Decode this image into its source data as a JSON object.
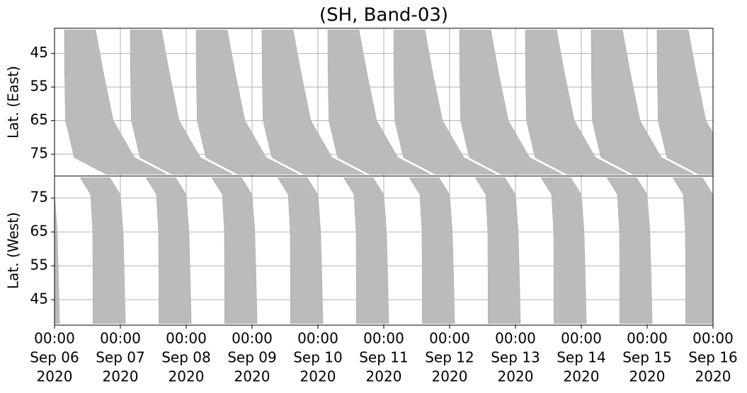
{
  "chart_data": [
    {
      "type": "band",
      "title": "(SH, Band-03)",
      "ylabel": "Lat. (East)",
      "ylim": [
        81.5,
        37.5
      ],
      "yticks": [
        45,
        55,
        65,
        75
      ],
      "grid": true,
      "color": "#bbbbbb",
      "lats": [
        38,
        50,
        65,
        76,
        81
      ],
      "bands": [
        {
          "start": [
            "2020-09-06 03:36",
            "2020-09-06 03:40",
            "2020-09-06 04:00",
            "2020-09-06 07:10",
            "2020-09-06 18:50"
          ],
          "end": [
            "2020-09-06 15:00",
            "2020-09-06 17:40",
            "2020-09-06 21:25",
            "2020-09-07 05:10",
            "2020-09-07 17:00"
          ]
        },
        {
          "start": [
            "2020-09-07 03:36",
            "2020-09-07 03:40",
            "2020-09-07 04:00",
            "2020-09-07 07:10",
            "2020-09-07 18:50"
          ],
          "end": [
            "2020-09-07 15:00",
            "2020-09-07 17:40",
            "2020-09-07 21:25",
            "2020-09-08 05:10",
            "2020-09-08 17:00"
          ]
        },
        {
          "start": [
            "2020-09-08 03:36",
            "2020-09-08 03:40",
            "2020-09-08 04:00",
            "2020-09-08 07:10",
            "2020-09-08 18:50"
          ],
          "end": [
            "2020-09-08 15:00",
            "2020-09-08 17:40",
            "2020-09-08 21:25",
            "2020-09-09 05:10",
            "2020-09-09 17:00"
          ]
        },
        {
          "start": [
            "2020-09-09 03:36",
            "2020-09-09 03:40",
            "2020-09-09 04:00",
            "2020-09-09 07:10",
            "2020-09-09 18:50"
          ],
          "end": [
            "2020-09-09 15:00",
            "2020-09-09 17:40",
            "2020-09-09 21:25",
            "2020-09-10 05:10",
            "2020-09-10 17:00"
          ]
        },
        {
          "start": [
            "2020-09-10 03:36",
            "2020-09-10 03:40",
            "2020-09-10 04:00",
            "2020-09-10 07:10",
            "2020-09-10 18:50"
          ],
          "end": [
            "2020-09-10 15:00",
            "2020-09-10 17:40",
            "2020-09-10 21:25",
            "2020-09-11 05:10",
            "2020-09-11 17:00"
          ]
        },
        {
          "start": [
            "2020-09-11 03:36",
            "2020-09-11 03:40",
            "2020-09-11 04:00",
            "2020-09-11 07:10",
            "2020-09-11 18:50"
          ],
          "end": [
            "2020-09-11 15:00",
            "2020-09-11 17:40",
            "2020-09-11 21:25",
            "2020-09-12 05:10",
            "2020-09-12 17:00"
          ]
        },
        {
          "start": [
            "2020-09-12 03:36",
            "2020-09-12 03:40",
            "2020-09-12 04:00",
            "2020-09-12 07:10",
            "2020-09-12 18:50"
          ],
          "end": [
            "2020-09-12 15:00",
            "2020-09-12 17:40",
            "2020-09-12 21:25",
            "2020-09-13 05:10",
            "2020-09-13 17:00"
          ]
        },
        {
          "start": [
            "2020-09-13 03:36",
            "2020-09-13 03:40",
            "2020-09-13 04:00",
            "2020-09-13 07:10",
            "2020-09-13 18:50"
          ],
          "end": [
            "2020-09-13 15:00",
            "2020-09-13 17:40",
            "2020-09-13 21:25",
            "2020-09-14 05:10",
            "2020-09-14 17:00"
          ]
        },
        {
          "start": [
            "2020-09-14 03:36",
            "2020-09-14 03:40",
            "2020-09-14 04:00",
            "2020-09-14 07:10",
            "2020-09-14 18:50"
          ],
          "end": [
            "2020-09-14 15:00",
            "2020-09-14 17:40",
            "2020-09-14 21:25",
            "2020-09-15 05:10",
            "2020-09-15 17:00"
          ]
        },
        {
          "start": [
            "2020-09-15 03:36",
            "2020-09-15 03:40",
            "2020-09-15 04:00",
            "2020-09-15 07:10",
            "2020-09-15 18:50"
          ],
          "end": [
            "2020-09-15 15:00",
            "2020-09-15 17:40",
            "2020-09-15 21:25",
            "2020-09-16 05:10",
            "2020-09-16 17:00"
          ]
        }
      ]
    },
    {
      "type": "band",
      "ylabel": "Lat. (West)",
      "ylim": [
        37.5,
        81.5
      ],
      "yticks": [
        45,
        55,
        65,
        75
      ],
      "grid": true,
      "color": "#bbbbbb",
      "xlim": [
        "2020-09-06 00:00",
        "2020-09-16 00:00"
      ],
      "xticks": [
        {
          "value": "2020-09-06 00:00",
          "label": [
            "00:00",
            "Sep 06",
            "2020"
          ]
        },
        {
          "value": "2020-09-07 00:00",
          "label": [
            "00:00",
            "Sep 07",
            "2020"
          ]
        },
        {
          "value": "2020-09-08 00:00",
          "label": [
            "00:00",
            "Sep 08",
            "2020"
          ]
        },
        {
          "value": "2020-09-09 00:00",
          "label": [
            "00:00",
            "Sep 09",
            "2020"
          ]
        },
        {
          "value": "2020-09-10 00:00",
          "label": [
            "00:00",
            "Sep 10",
            "2020"
          ]
        },
        {
          "value": "2020-09-11 00:00",
          "label": [
            "00:00",
            "Sep 11",
            "2020"
          ]
        },
        {
          "value": "2020-09-12 00:00",
          "label": [
            "00:00",
            "Sep 12",
            "2020"
          ]
        },
        {
          "value": "2020-09-13 00:00",
          "label": [
            "00:00",
            "Sep 13",
            "2020"
          ]
        },
        {
          "value": "2020-09-14 00:00",
          "label": [
            "00:00",
            "Sep 14",
            "2020"
          ]
        },
        {
          "value": "2020-09-15 00:00",
          "label": [
            "00:00",
            "Sep 15",
            "2020"
          ]
        },
        {
          "value": "2020-09-16 00:00",
          "label": [
            "00:00",
            "Sep 16",
            "2020"
          ]
        }
      ],
      "lats": [
        38,
        50,
        65,
        76,
        81
      ],
      "bands": [
        {
          "start": [
            "2020-09-05 14:00",
            "2020-09-05 14:00",
            "2020-09-05 13:55",
            "2020-09-05 13:10",
            "2020-09-05 09:20"
          ],
          "end": [
            "2020-09-06 01:50",
            "2020-09-06 01:30",
            "2020-09-06 01:00",
            "2020-09-06 00:00",
            "2020-09-05 20:10"
          ]
        },
        {
          "start": [
            "2020-09-06 14:00",
            "2020-09-06 14:00",
            "2020-09-06 13:55",
            "2020-09-06 13:10",
            "2020-09-06 09:20"
          ],
          "end": [
            "2020-09-07 01:50",
            "2020-09-07 01:30",
            "2020-09-07 01:00",
            "2020-09-07 00:00",
            "2020-09-06 20:10"
          ]
        },
        {
          "start": [
            "2020-09-07 14:00",
            "2020-09-07 14:00",
            "2020-09-07 13:55",
            "2020-09-07 13:10",
            "2020-09-07 09:20"
          ],
          "end": [
            "2020-09-08 01:50",
            "2020-09-08 01:30",
            "2020-09-08 01:00",
            "2020-09-08 00:00",
            "2020-09-07 20:10"
          ]
        },
        {
          "start": [
            "2020-09-08 14:00",
            "2020-09-08 14:00",
            "2020-09-08 13:55",
            "2020-09-08 13:10",
            "2020-09-08 09:20"
          ],
          "end": [
            "2020-09-09 01:50",
            "2020-09-09 01:30",
            "2020-09-09 01:00",
            "2020-09-09 00:00",
            "2020-09-08 20:10"
          ]
        },
        {
          "start": [
            "2020-09-09 14:00",
            "2020-09-09 14:00",
            "2020-09-09 13:55",
            "2020-09-09 13:10",
            "2020-09-09 09:20"
          ],
          "end": [
            "2020-09-10 01:50",
            "2020-09-10 01:30",
            "2020-09-10 01:00",
            "2020-09-10 00:00",
            "2020-09-09 20:10"
          ]
        },
        {
          "start": [
            "2020-09-10 14:00",
            "2020-09-10 14:00",
            "2020-09-10 13:55",
            "2020-09-10 13:10",
            "2020-09-10 09:20"
          ],
          "end": [
            "2020-09-11 01:50",
            "2020-09-11 01:30",
            "2020-09-11 01:00",
            "2020-09-11 00:00",
            "2020-09-10 20:10"
          ]
        },
        {
          "start": [
            "2020-09-11 14:00",
            "2020-09-11 14:00",
            "2020-09-11 13:55",
            "2020-09-11 13:10",
            "2020-09-11 09:20"
          ],
          "end": [
            "2020-09-12 01:50",
            "2020-09-12 01:30",
            "2020-09-12 01:00",
            "2020-09-12 00:00",
            "2020-09-11 20:10"
          ]
        },
        {
          "start": [
            "2020-09-12 14:00",
            "2020-09-12 14:00",
            "2020-09-12 13:55",
            "2020-09-12 13:10",
            "2020-09-12 09:20"
          ],
          "end": [
            "2020-09-13 01:50",
            "2020-09-13 01:30",
            "2020-09-13 01:00",
            "2020-09-13 00:00",
            "2020-09-12 20:10"
          ]
        },
        {
          "start": [
            "2020-09-13 14:00",
            "2020-09-13 14:00",
            "2020-09-13 13:55",
            "2020-09-13 13:10",
            "2020-09-13 09:20"
          ],
          "end": [
            "2020-09-14 01:50",
            "2020-09-14 01:30",
            "2020-09-14 01:00",
            "2020-09-14 00:00",
            "2020-09-13 20:10"
          ]
        },
        {
          "start": [
            "2020-09-14 14:00",
            "2020-09-14 14:00",
            "2020-09-14 13:55",
            "2020-09-14 13:10",
            "2020-09-14 09:20"
          ],
          "end": [
            "2020-09-15 01:50",
            "2020-09-15 01:30",
            "2020-09-15 01:00",
            "2020-09-15 00:00",
            "2020-09-14 20:10"
          ]
        },
        {
          "start": [
            "2020-09-15 14:00",
            "2020-09-15 14:00",
            "2020-09-15 13:55",
            "2020-09-15 13:10",
            "2020-09-15 09:20"
          ],
          "end": [
            "2020-09-16 01:50",
            "2020-09-16 01:30",
            "2020-09-16 01:00",
            "2020-09-16 00:00",
            "2020-09-15 20:10"
          ]
        }
      ]
    }
  ]
}
